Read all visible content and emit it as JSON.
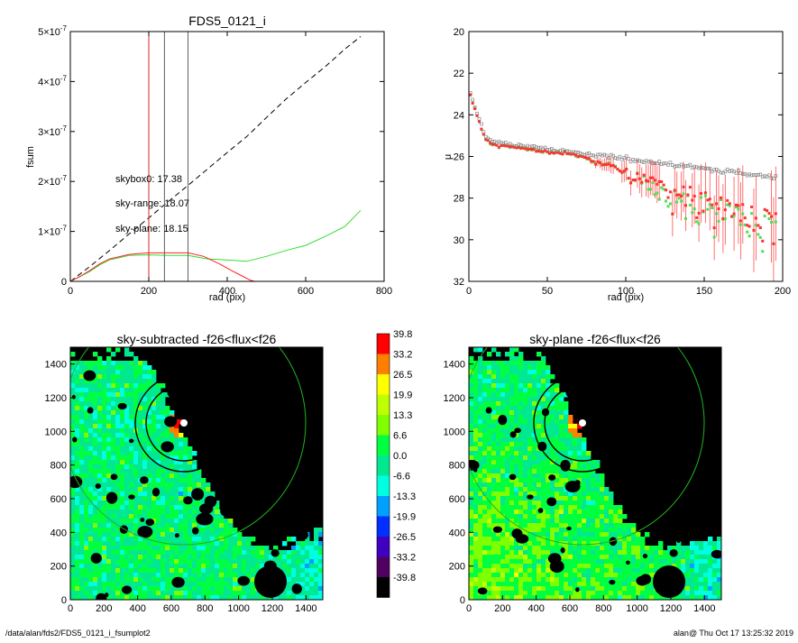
{
  "chart_data": [
    {
      "id": "fsum-profile",
      "type": "line",
      "title": "FDS5_0121_i",
      "xlabel": "rad (pix)",
      "ylabel": "fsum",
      "xlim": [
        0,
        800
      ],
      "ylim": [
        0,
        5e-07
      ],
      "xticks": [
        "0",
        "200",
        "400",
        "600",
        "800"
      ],
      "yticks": [
        {
          "v": 0,
          "m": "0",
          "e": ""
        },
        {
          "v": 1e-07,
          "m": "1×10",
          "e": "-7"
        },
        {
          "v": 2e-07,
          "m": "2×10",
          "e": "-7"
        },
        {
          "v": 3e-07,
          "m": "3×10",
          "e": "-7"
        },
        {
          "v": 4e-07,
          "m": "4×10",
          "e": "-7"
        },
        {
          "v": 5e-07,
          "m": "5×10",
          "e": "-7"
        }
      ],
      "vlines": [
        {
          "x": 200,
          "color": "#d62728"
        },
        {
          "x": 240,
          "color": "#606060"
        },
        {
          "x": 300,
          "color": "#606060"
        }
      ],
      "annotations": [
        {
          "text": "skybox0: 17.38",
          "color": "#000000"
        },
        {
          "text": "sky-range: 18.07",
          "color": "#ff2020"
        },
        {
          "text": "sky-plane: 18.15",
          "color": "#33dd33"
        }
      ],
      "series": [
        {
          "color": "#000000",
          "dash": true,
          "x": [
            0,
            50,
            100,
            150,
            200,
            250,
            300,
            350,
            400,
            450,
            500,
            550,
            600,
            650,
            700,
            740
          ],
          "y": [
            0,
            3e-08,
            6.2e-08,
            9.5e-08,
            1.27e-07,
            1.6e-07,
            1.92e-07,
            2.25e-07,
            2.58e-07,
            2.9e-07,
            3.28e-07,
            3.65e-07,
            3.98e-07,
            4.3e-07,
            4.65e-07,
            4.9e-07
          ]
        },
        {
          "color": "#33dd33",
          "x": [
            0,
            25,
            50,
            75,
            100,
            150,
            200,
            250,
            300,
            350,
            400,
            450,
            500,
            550,
            600,
            650,
            700,
            740
          ],
          "y": [
            0,
            1e-08,
            2e-08,
            3.3e-08,
            4.3e-08,
            5.2e-08,
            5.3e-08,
            5.2e-08,
            5.2e-08,
            4.5e-08,
            4.3e-08,
            4e-08,
            5e-08,
            6.2e-08,
            7.2e-08,
            9e-08,
            1.1e-07,
            1.42e-07
          ]
        },
        {
          "color": "#ff2020",
          "x": [
            0,
            25,
            50,
            75,
            100,
            150,
            200,
            250,
            300,
            340,
            380,
            410,
            440,
            460,
            470
          ],
          "y": [
            0,
            1e-08,
            2.2e-08,
            3.5e-08,
            4.5e-08,
            5.4e-08,
            5.7e-08,
            5.7e-08,
            5.7e-08,
            5e-08,
            3.5e-08,
            2.2e-08,
            1e-08,
            2e-09,
            0
          ]
        }
      ]
    },
    {
      "id": "surface-brightness",
      "type": "scatter",
      "xlabel": "rad (pix)",
      "ylabel": "μ",
      "xlim": [
        0,
        200
      ],
      "ylim": [
        32,
        20
      ],
      "xticks": [
        "0",
        "50",
        "100",
        "150",
        "200"
      ],
      "yticks": [
        "20",
        "22",
        "24",
        "26",
        "28",
        "30",
        "32"
      ],
      "series": [
        {
          "color": "#888888",
          "marker": "square",
          "model": "gray"
        },
        {
          "color": "#ff3030",
          "marker": "square",
          "model": "red"
        },
        {
          "color": "#55dd55",
          "marker": "square",
          "model": "green"
        }
      ]
    },
    {
      "id": "sky-subtracted-image",
      "type": "heatmap",
      "title": "sky-subtracted -f26<flux<f26",
      "xlim": [
        0,
        1500
      ],
      "ylim": [
        0,
        1500
      ],
      "xticks": [
        "0",
        "200",
        "400",
        "600",
        "800",
        "1000",
        "1200",
        "1400"
      ],
      "yticks": [
        "0",
        "200",
        "400",
        "600",
        "800",
        "1000",
        "1200",
        "1400"
      ]
    },
    {
      "id": "sky-plane-image",
      "type": "heatmap",
      "title": "sky-plane -f26<flux<f26",
      "xlim": [
        0,
        1500
      ],
      "ylim": [
        0,
        1500
      ],
      "xticks": [
        "0",
        "200",
        "400",
        "600",
        "800",
        "1000",
        "1200",
        "1400"
      ],
      "yticks": [
        "0",
        "200",
        "400",
        "600",
        "800",
        "1000",
        "1200",
        "1400"
      ]
    },
    {
      "id": "colorbar",
      "type": "table",
      "levels": [
        {
          "label": "39.8",
          "color": "#ff0000"
        },
        {
          "label": "33.2",
          "color": "#ff8000"
        },
        {
          "label": "26.5",
          "color": "#ffff00"
        },
        {
          "label": "19.9",
          "color": "#c0ff00"
        },
        {
          "label": "13.3",
          "color": "#80ff00"
        },
        {
          "label": "6.6",
          "color": "#00ff40"
        },
        {
          "label": "0.0",
          "color": "#00e890"
        },
        {
          "label": "-6.6",
          "color": "#00ffe0"
        },
        {
          "label": "-13.3",
          "color": "#00a0ff"
        },
        {
          "label": "-19.9",
          "color": "#0030ff"
        },
        {
          "label": "-26.5",
          "color": "#4000c0"
        },
        {
          "label": "-33.2",
          "color": "#500060"
        },
        {
          "label": "-39.8",
          "color": "#000000"
        }
      ]
    }
  ],
  "footer": {
    "path": "/data/alan/fds2/FDS5_0121_i_fsumplot2",
    "stamp": "alan@  Thu Oct 17 13:25:32 2019"
  }
}
